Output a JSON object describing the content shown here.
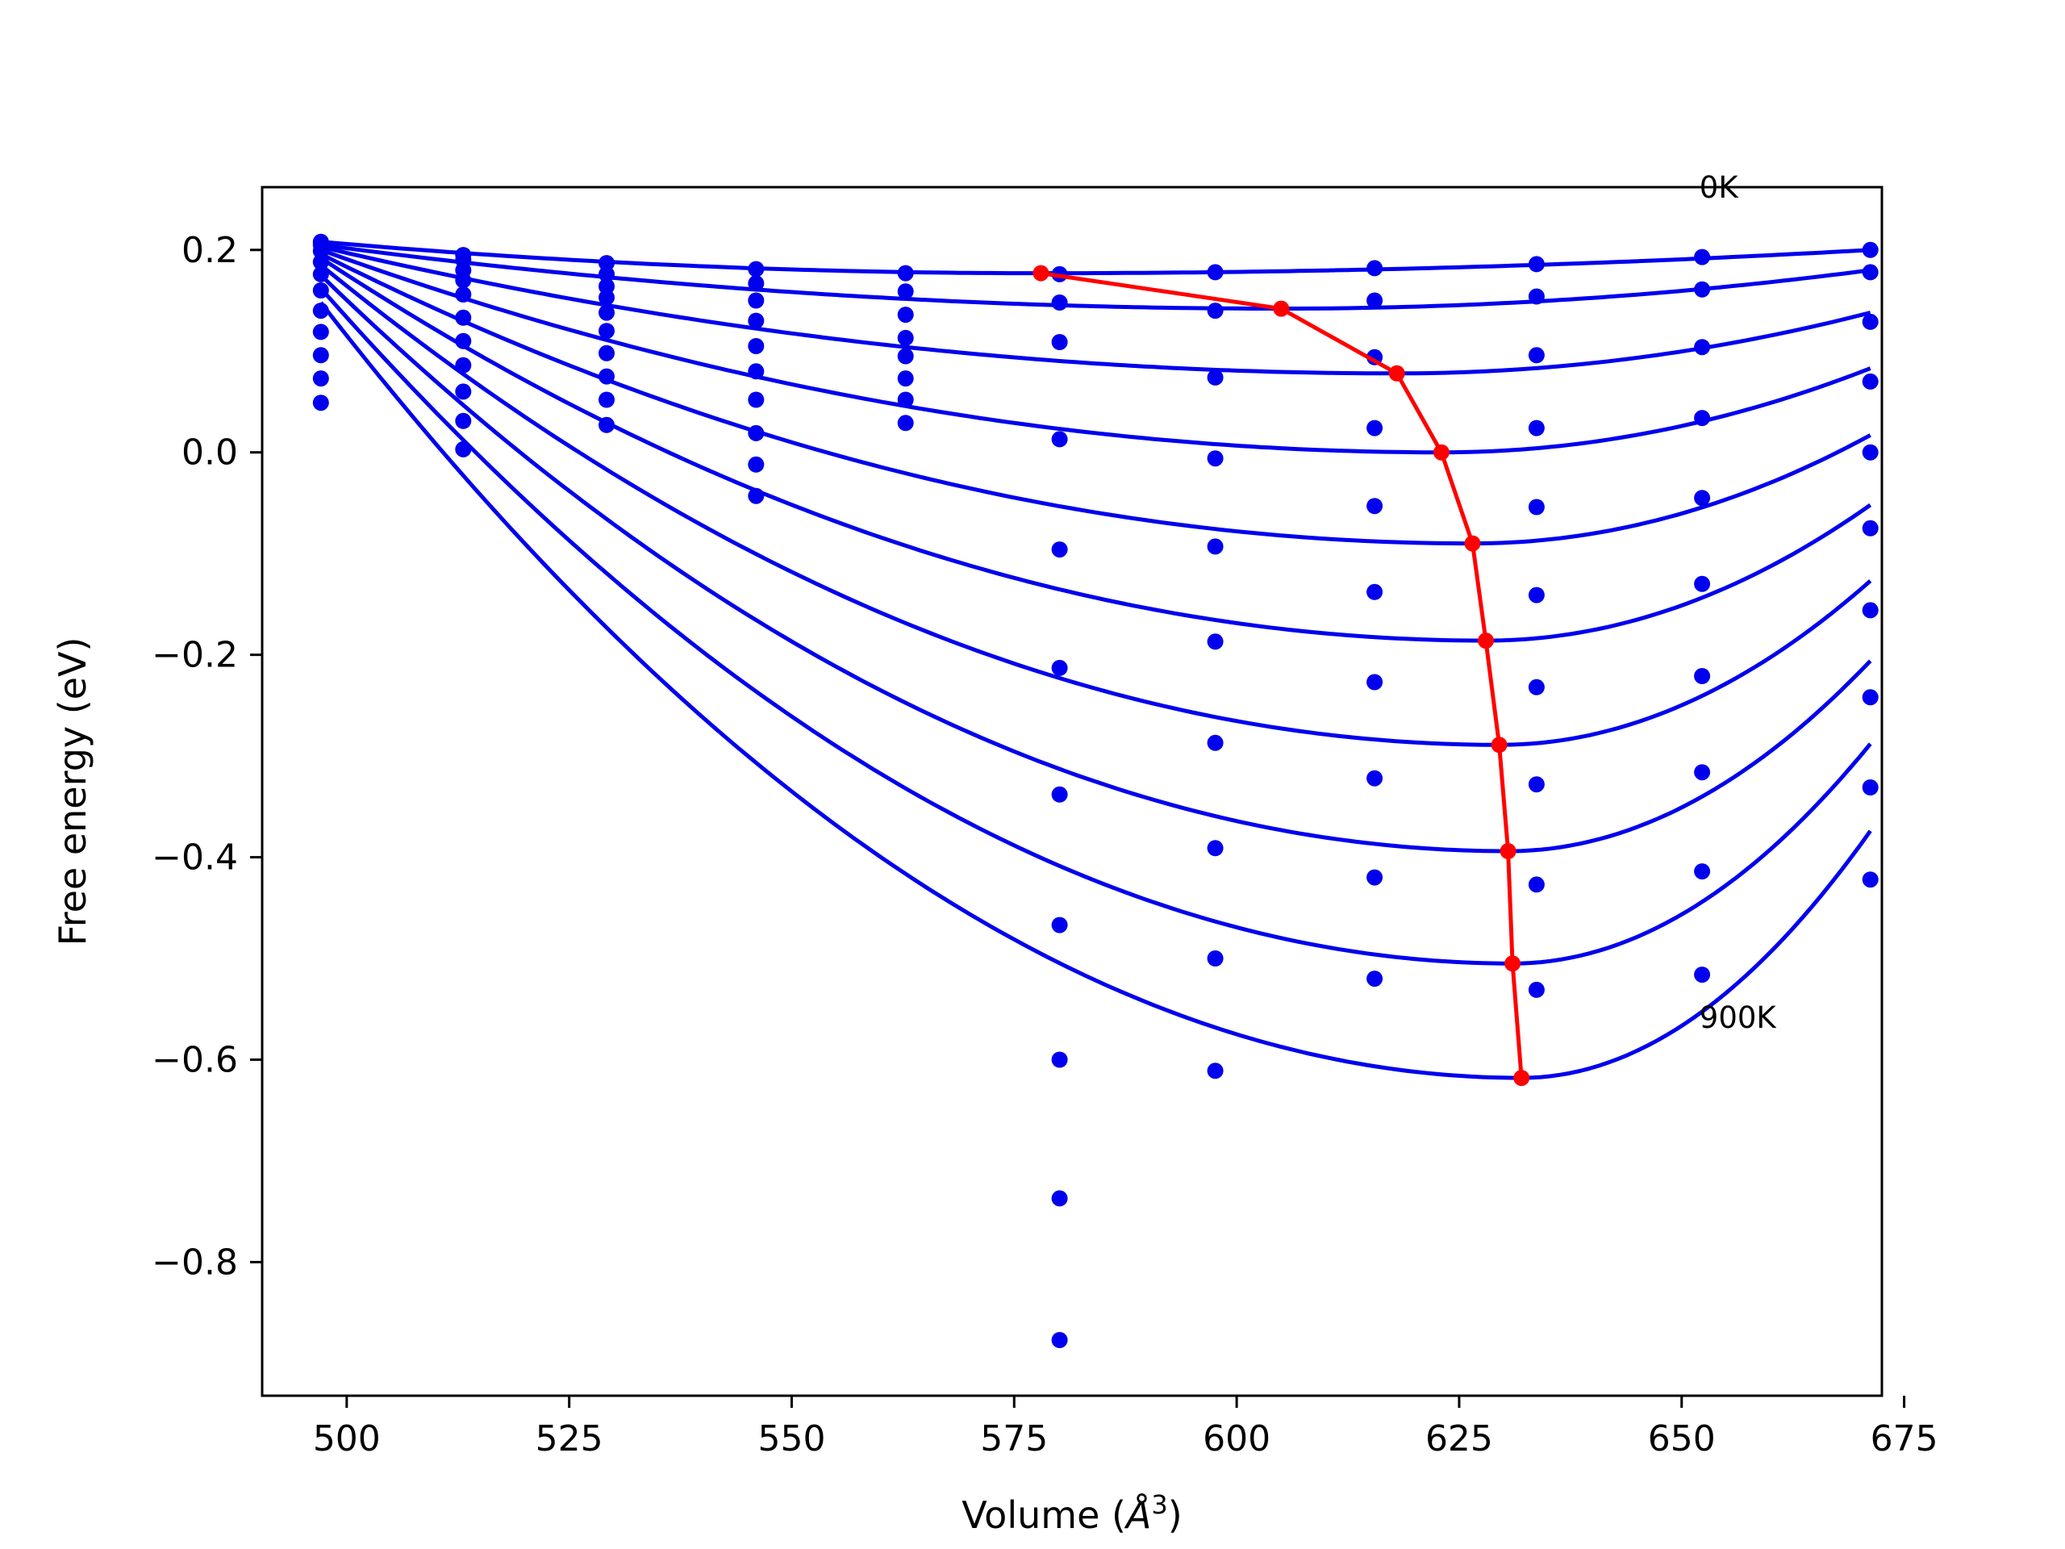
{
  "chart_data": {
    "type": "line",
    "title": "",
    "xlabel": "Volume (",
    "xlabel_symbol": "Å",
    "xlabel_exponent": "3",
    "xlabel_close": ")",
    "ylabel": "Free energy (eV)",
    "xlim": [
      490.5,
      672.5
    ],
    "ylim": [
      -0.932,
      0.262
    ],
    "grid": false,
    "legend": "none",
    "x_ticks": [
      500,
      525,
      550,
      575,
      600,
      625,
      650,
      675
    ],
    "x_tick_labels": [
      "500",
      "525",
      "550",
      "575",
      "600",
      "625",
      "650",
      "675"
    ],
    "y_ticks": [
      0.2,
      0.0,
      -0.2,
      -0.4,
      -0.6,
      -0.8
    ],
    "y_tick_labels": [
      "0.2",
      "0.0",
      "−0.2",
      "−0.4",
      "−0.6",
      "−0.8"
    ],
    "annotations": [
      {
        "text": "0K",
        "x": 652.0,
        "y": 0.262
      },
      {
        "text": "900K",
        "x": 652.0,
        "y": -0.558
      }
    ],
    "colors": {
      "curves": "#0000ee",
      "equilibrium": "#ff0000",
      "axes": "#000000"
    },
    "volumes": [
      497.1,
      513.1,
      529.2,
      546.0,
      562.8,
      580.1,
      597.6,
      615.5,
      633.7,
      652.3,
      671.2
    ],
    "series": [
      {
        "values": [
          0.208,
          0.195,
          0.187,
          0.181,
          0.177,
          0.176,
          0.178,
          0.182,
          0.186,
          0.193,
          0.2
        ],
        "fit": {
          "V0": 578.0,
          "F0": 0.177,
          "Vlo": 497.1,
          "Flo": 0.208,
          "Vhi": 671.2,
          "Fhi": 0.2
        }
      },
      {
        "values": [
          0.205,
          0.19,
          0.176,
          0.167,
          0.159,
          0.148,
          0.14,
          0.15,
          0.154,
          0.161,
          0.178
        ],
        "fit": {
          "V0": 605.0,
          "F0": 0.142,
          "Vlo": 497.1,
          "Flo": 0.205,
          "Vhi": 671.2,
          "Fhi": 0.18
        }
      },
      {
        "values": [
          0.199,
          0.18,
          0.164,
          0.15,
          0.136,
          0.109,
          0.074,
          0.094,
          0.096,
          0.104,
          0.129
        ],
        "fit": {
          "V0": 618.0,
          "F0": 0.078,
          "Vlo": 497.1,
          "Flo": 0.203,
          "Vhi": 671.2,
          "Fhi": 0.138
        }
      },
      {
        "values": [
          0.188,
          0.17,
          0.153,
          0.13,
          0.113,
          0.013,
          -0.006,
          0.024,
          0.024,
          0.034,
          0.07
        ],
        "fit": {
          "V0": 623.0,
          "F0": 0.0,
          "Vlo": 497.1,
          "Flo": 0.2,
          "Vhi": 671.2,
          "Fhi": 0.083
        }
      },
      {
        "values": [
          0.176,
          0.156,
          0.138,
          0.105,
          0.095,
          -0.096,
          -0.093,
          -0.053,
          -0.054,
          -0.045,
          0.0
        ],
        "fit": {
          "V0": 626.5,
          "F0": -0.09,
          "Vlo": 497.1,
          "Flo": 0.196,
          "Vhi": 671.2,
          "Fhi": 0.017
        }
      },
      {
        "values": [
          0.16,
          0.133,
          0.12,
          0.08,
          0.073,
          -0.213,
          -0.187,
          -0.138,
          -0.141,
          -0.13,
          -0.075
        ],
        "fit": {
          "V0": 628.0,
          "F0": -0.186,
          "Vlo": 497.1,
          "Flo": 0.192,
          "Vhi": 671.2,
          "Fhi": -0.052
        }
      },
      {
        "values": [
          0.14,
          0.11,
          0.098,
          0.052,
          0.052,
          -0.338,
          -0.287,
          -0.227,
          -0.232,
          -0.221,
          -0.156
        ],
        "fit": {
          "V0": 629.5,
          "F0": -0.289,
          "Vlo": 497.1,
          "Flo": 0.185,
          "Vhi": 671.2,
          "Fhi": -0.127
        }
      },
      {
        "values": [
          0.119,
          0.086,
          0.075,
          0.019,
          0.029,
          -0.467,
          -0.391,
          -0.322,
          -0.328,
          -0.316,
          -0.242
        ],
        "fit": {
          "V0": 630.5,
          "F0": -0.394,
          "Vlo": 497.1,
          "Flo": 0.175,
          "Vhi": 671.2,
          "Fhi": -0.206
        }
      },
      {
        "values": [
          0.096,
          0.06,
          0.052,
          -0.012,
          null,
          -0.6,
          -0.5,
          -0.42,
          -0.427,
          -0.414,
          -0.331
        ],
        "fit": {
          "V0": 631.0,
          "F0": -0.505,
          "Vlo": 497.1,
          "Flo": 0.162,
          "Vhi": 671.2,
          "Fhi": -0.288
        }
      },
      {
        "values": [
          0.073,
          0.031,
          0.027,
          -0.043,
          null,
          -0.737,
          -0.611,
          -0.52,
          -0.531,
          -0.516,
          -0.422
        ],
        "fit": {
          "V0": 632.0,
          "F0": -0.618,
          "Vlo": 497.1,
          "Flo": 0.148,
          "Vhi": 671.2,
          "Fhi": -0.374
        }
      },
      {
        "values": [
          0.049,
          0.003,
          null,
          null,
          null,
          -0.877,
          null,
          null,
          null,
          null,
          null
        ]
      }
    ],
    "equilibrium": {
      "x": [
        578.0,
        605.0,
        618.0,
        623.0,
        626.5,
        628.0,
        629.5,
        630.5,
        631.0,
        632.0
      ],
      "y": [
        0.177,
        0.142,
        0.078,
        0.0,
        -0.09,
        -0.186,
        -0.289,
        -0.394,
        -0.505,
        -0.618
      ]
    }
  }
}
